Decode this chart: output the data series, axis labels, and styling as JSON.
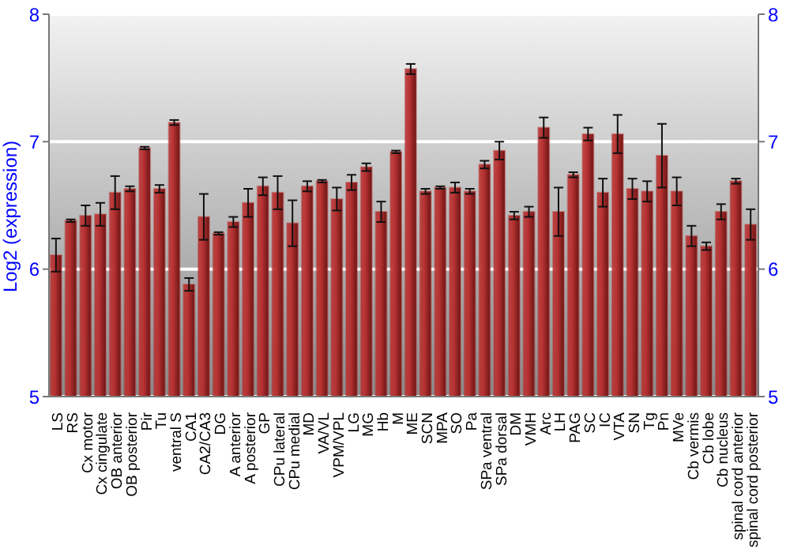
{
  "chart_data": {
    "type": "bar",
    "ylabel": "Log2 (expression)",
    "categories": [
      "LS",
      "RS",
      "Cx motor",
      "Cx cingulate",
      "OB anterior",
      "OB posterior",
      "Pir",
      "Tu",
      "ventral S",
      "CA1",
      "CA2/CA3",
      "DG",
      "A anterior",
      "A posterior",
      "GP",
      "CPu lateral",
      "CPu medial",
      "MD",
      "VA/VL",
      "VPM/VPL",
      "LG",
      "MG",
      "Hb",
      "M",
      "ME",
      "SCN",
      "MPA",
      "SO",
      "Pa",
      "SPa ventral",
      "SPa dorsal",
      "DM",
      "VMH",
      "Arc",
      "LH",
      "PAG",
      "SC",
      "IC",
      "VTA",
      "SN",
      "Tg",
      "Pn",
      "MVe",
      "Cb vermis",
      "Cb lobe",
      "Cb nucleus",
      "spinal cord anterior",
      "spinal cord posterior"
    ],
    "values": [
      6.11,
      6.38,
      6.42,
      6.43,
      6.6,
      6.63,
      6.95,
      6.63,
      7.15,
      5.88,
      6.41,
      6.28,
      6.37,
      6.52,
      6.65,
      6.6,
      6.36,
      6.65,
      6.69,
      6.55,
      6.68,
      6.8,
      6.45,
      6.92,
      7.57,
      6.61,
      6.64,
      6.64,
      6.61,
      6.82,
      6.93,
      6.42,
      6.45,
      7.11,
      6.45,
      6.74,
      7.06,
      6.6,
      7.06,
      6.63,
      6.61,
      6.89,
      6.61,
      6.26,
      6.18,
      6.45,
      6.69,
      6.35
    ],
    "errors": [
      0.13,
      0.01,
      0.08,
      0.09,
      0.13,
      0.02,
      0.01,
      0.03,
      0.02,
      0.05,
      0.18,
      0.01,
      0.04,
      0.11,
      0.07,
      0.13,
      0.18,
      0.04,
      0.01,
      0.09,
      0.06,
      0.03,
      0.08,
      0.01,
      0.04,
      0.02,
      0.01,
      0.04,
      0.02,
      0.03,
      0.07,
      0.03,
      0.04,
      0.08,
      0.19,
      0.02,
      0.05,
      0.11,
      0.15,
      0.08,
      0.08,
      0.25,
      0.11,
      0.08,
      0.03,
      0.06,
      0.02,
      0.12
    ],
    "color": "#b83232",
    "ylim": [
      5,
      8
    ],
    "yticks": [
      5,
      6,
      7,
      8
    ],
    "y2lim": [
      5,
      8
    ],
    "y2ticks": [
      5,
      6,
      7,
      8
    ],
    "grid": "y"
  }
}
